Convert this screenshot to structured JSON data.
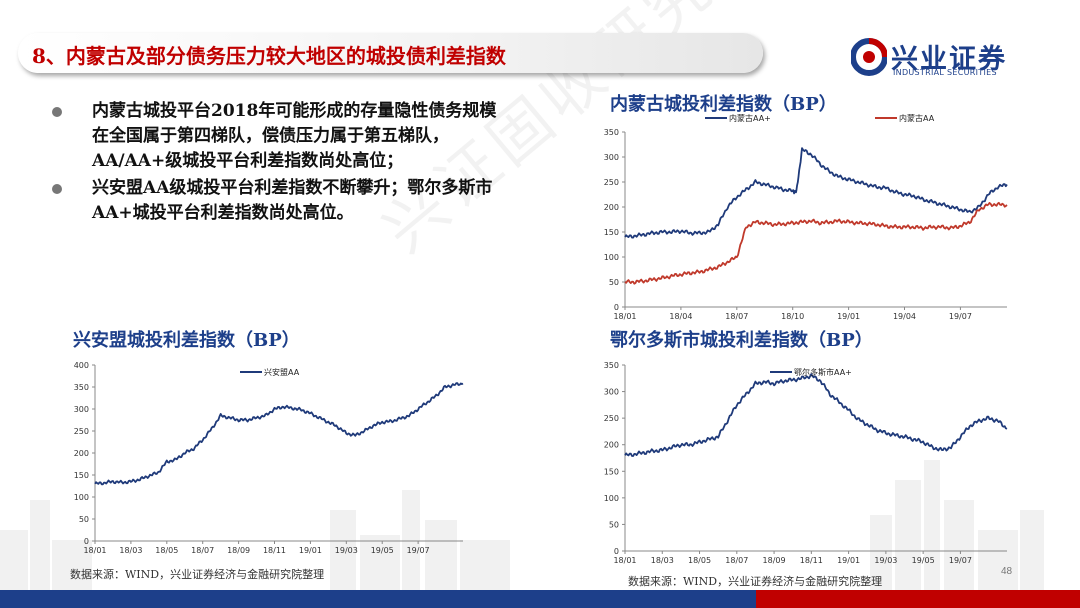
{
  "header": {
    "title": "8、内蒙古及部分债务压力较大地区的城投债利差指数"
  },
  "logo": {
    "name_cn": "兴业证券",
    "name_en": "INDUSTRIAL SECURITIES",
    "brand_color": "#1d3f8a",
    "accent_color": "#c00000"
  },
  "bullets": [
    "内蒙古城投平台2018年可能形成的存量隐性债务规模在全国属于第四梯队，偿债压力属于第五梯队，AA/AA+级城投平台利差指数尚处高位；",
    "兴安盟AA级城投平台利差指数不断攀升；鄂尔多斯市AA+城投平台利差指数尚处高位。"
  ],
  "watermark": "兴证固收研究",
  "page_number": "48",
  "chart_data": [
    {
      "id": "inner-mongolia",
      "type": "line",
      "title": "内蒙古城投利差指数（BP）",
      "ylim": [
        0,
        350
      ],
      "yticks": [
        0,
        50,
        100,
        150,
        200,
        250,
        300,
        350
      ],
      "xlim": [
        0,
        20.5
      ],
      "xticks": [
        {
          "label": "18/01",
          "x": 0
        },
        {
          "label": "18/04",
          "x": 3
        },
        {
          "label": "18/07",
          "x": 6
        },
        {
          "label": "18/10",
          "x": 9
        },
        {
          "label": "19/01",
          "x": 12
        },
        {
          "label": "19/04",
          "x": 15
        },
        {
          "label": "19/07",
          "x": 18
        }
      ],
      "legend": "top",
      "series": [
        {
          "name": "内蒙古AA+",
          "color": "#1f3a7a",
          "x": [
            0,
            0.5,
            1,
            1.5,
            2,
            2.5,
            3,
            3.5,
            4,
            4.5,
            5,
            5.5,
            6,
            6.5,
            7,
            7.5,
            8,
            8.5,
            9,
            9.2,
            9.5,
            10,
            10.5,
            11,
            11.5,
            12,
            12.5,
            13,
            13.5,
            14,
            14.5,
            15,
            15.5,
            16,
            16.5,
            17,
            17.5,
            18,
            18.5,
            19,
            19.5,
            20,
            20.5
          ],
          "values": [
            140,
            142,
            145,
            148,
            150,
            150,
            152,
            148,
            148,
            150,
            165,
            200,
            220,
            235,
            250,
            245,
            240,
            235,
            232,
            230,
            315,
            305,
            285,
            270,
            260,
            255,
            250,
            245,
            240,
            238,
            230,
            225,
            222,
            215,
            210,
            205,
            200,
            195,
            190,
            200,
            225,
            240,
            245
          ]
        },
        {
          "name": "内蒙古AA",
          "color": "#c0392b",
          "x": [
            0,
            0.5,
            1,
            1.5,
            2,
            2.5,
            3,
            3.5,
            4,
            4.5,
            5,
            5.5,
            6,
            6.5,
            7,
            7.5,
            8,
            8.5,
            9,
            9.5,
            10,
            10.5,
            11,
            11.5,
            12,
            12.5,
            13,
            13.5,
            14,
            14.5,
            15,
            15.5,
            16,
            16.5,
            17,
            17.5,
            18,
            18.5,
            19,
            19.5,
            20,
            20.5
          ],
          "values": [
            50,
            50,
            52,
            55,
            58,
            62,
            65,
            68,
            70,
            75,
            80,
            90,
            100,
            160,
            170,
            168,
            165,
            166,
            168,
            170,
            172,
            168,
            170,
            172,
            170,
            168,
            167,
            165,
            162,
            160,
            160,
            160,
            158,
            160,
            160,
            158,
            162,
            170,
            195,
            205,
            205,
            204
          ]
        }
      ]
    },
    {
      "id": "xinganmeng",
      "type": "line",
      "title": "兴安盟城投利差指数（BP）",
      "ylim": [
        0,
        400
      ],
      "yticks": [
        0,
        50,
        100,
        150,
        200,
        250,
        300,
        350,
        400
      ],
      "xlim": [
        0,
        20.5
      ],
      "xticks": [
        {
          "label": "18/01",
          "x": 0
        },
        {
          "label": "18/03",
          "x": 2
        },
        {
          "label": "18/05",
          "x": 4
        },
        {
          "label": "18/07",
          "x": 6
        },
        {
          "label": "18/09",
          "x": 8
        },
        {
          "label": "18/11",
          "x": 10
        },
        {
          "label": "19/01",
          "x": 12
        },
        {
          "label": "19/03",
          "x": 14
        },
        {
          "label": "19/05",
          "x": 16
        },
        {
          "label": "19/07",
          "x": 18
        }
      ],
      "legend": "top",
      "series": [
        {
          "name": "兴安盟AA",
          "color": "#1f3a7a",
          "x": [
            0,
            0.5,
            1,
            1.5,
            2,
            2.5,
            3,
            3.5,
            4,
            4.5,
            5,
            5.5,
            6,
            6.5,
            7,
            7.5,
            8,
            8.5,
            9,
            9.5,
            10,
            10.5,
            11,
            11.5,
            12,
            12.5,
            13,
            13.5,
            14,
            14.5,
            15,
            15.5,
            16,
            16.5,
            17,
            17.5,
            18,
            18.5,
            19,
            19.5,
            20,
            20.5
          ],
          "values": [
            130,
            132,
            135,
            133,
            135,
            140,
            148,
            155,
            180,
            185,
            200,
            210,
            230,
            255,
            285,
            280,
            275,
            275,
            280,
            285,
            300,
            305,
            302,
            298,
            290,
            280,
            270,
            260,
            245,
            240,
            250,
            262,
            270,
            272,
            278,
            285,
            300,
            315,
            330,
            350,
            355,
            358
          ]
        }
      ]
    },
    {
      "id": "ordos",
      "type": "line",
      "title": "鄂尔多斯市城投利差指数（BP）",
      "ylim": [
        0,
        350
      ],
      "yticks": [
        0,
        50,
        100,
        150,
        200,
        250,
        300,
        350
      ],
      "xlim": [
        0,
        20.5
      ],
      "xticks": [
        {
          "label": "18/01",
          "x": 0
        },
        {
          "label": "18/03",
          "x": 2
        },
        {
          "label": "18/05",
          "x": 4
        },
        {
          "label": "18/07",
          "x": 6
        },
        {
          "label": "18/09",
          "x": 8
        },
        {
          "label": "18/11",
          "x": 10
        },
        {
          "label": "19/01",
          "x": 12
        },
        {
          "label": "19/03",
          "x": 14
        },
        {
          "label": "19/05",
          "x": 16
        },
        {
          "label": "19/07",
          "x": 18
        }
      ],
      "legend": "top",
      "series": [
        {
          "name": "鄂尔多斯市AA+",
          "color": "#1f3a7a",
          "x": [
            0,
            0.5,
            1,
            1.5,
            2,
            2.5,
            3,
            3.5,
            4,
            4.5,
            5,
            5.5,
            6,
            6.5,
            7,
            7.5,
            8,
            8.5,
            9,
            9.5,
            10,
            10.5,
            11,
            11.5,
            12,
            12.5,
            13,
            13.5,
            14,
            14.5,
            15,
            15.5,
            16,
            16.5,
            17,
            17.5,
            18,
            18.5,
            19,
            19.5,
            20,
            20.5
          ],
          "values": [
            180,
            182,
            185,
            188,
            190,
            195,
            200,
            200,
            205,
            210,
            215,
            245,
            275,
            295,
            315,
            318,
            315,
            320,
            322,
            325,
            330,
            320,
            295,
            280,
            265,
            248,
            238,
            228,
            222,
            218,
            215,
            210,
            205,
            195,
            190,
            195,
            215,
            235,
            245,
            250,
            245,
            230
          ]
        }
      ]
    }
  ],
  "sources": [
    "数据来源：WIND，兴业证券经济与金融研究院整理",
    "数据来源：WIND，兴业证券经济与金融研究院整理"
  ]
}
